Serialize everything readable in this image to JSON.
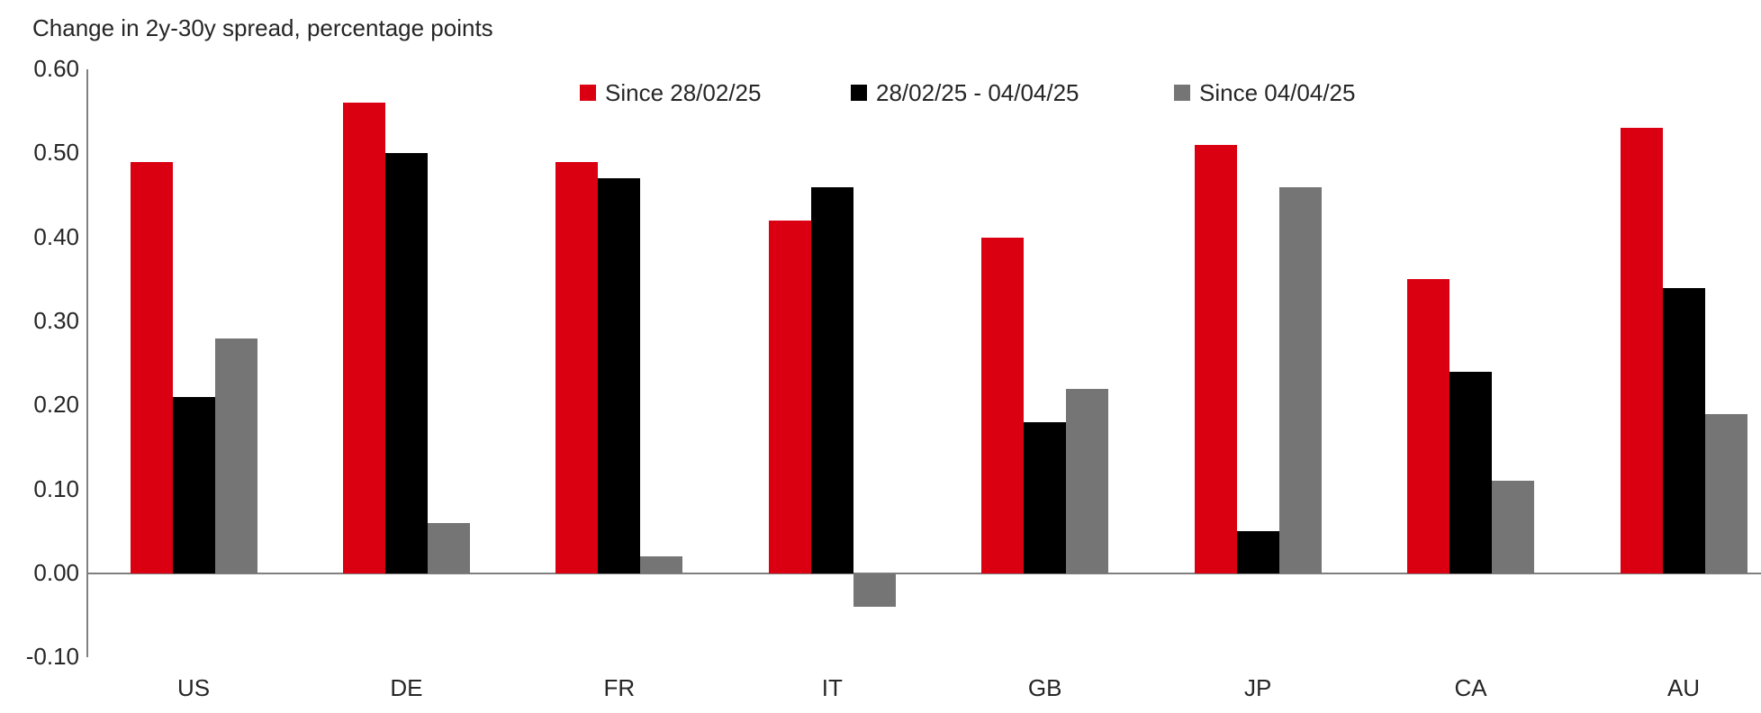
{
  "title": "Change in 2y-30y spread, percentage points",
  "chart_data": {
    "type": "bar",
    "categories": [
      "US",
      "DE",
      "FR",
      "IT",
      "GB",
      "JP",
      "CA",
      "AU"
    ],
    "series": [
      {
        "name": "Since 28/02/25",
        "color": "#da0012",
        "values": [
          0.49,
          0.56,
          0.49,
          0.42,
          0.4,
          0.51,
          0.35,
          0.53
        ]
      },
      {
        "name": "28/02/25 - 04/04/25",
        "color": "#000000",
        "values": [
          0.21,
          0.5,
          0.47,
          0.46,
          0.18,
          0.05,
          0.24,
          0.34
        ]
      },
      {
        "name": "Since 04/04/25",
        "color": "#757575",
        "values": [
          0.28,
          0.06,
          0.02,
          -0.04,
          0.22,
          0.46,
          0.11,
          0.19
        ]
      }
    ],
    "ylim": [
      -0.1,
      0.6
    ],
    "yticks": [
      "0.60",
      "0.50",
      "0.40",
      "0.30",
      "0.20",
      "0.10",
      "0.00",
      "-0.10"
    ],
    "ytick_values": [
      0.6,
      0.5,
      0.4,
      0.3,
      0.2,
      0.1,
      0.0,
      -0.1
    ],
    "xlabel": "",
    "ylabel": "Change in 2y-30y spread, percentage points",
    "legend_position": "top",
    "grid": false
  },
  "colors": {
    "axis": "#7f7f7f",
    "text": "#262626",
    "background": "#ffffff"
  }
}
